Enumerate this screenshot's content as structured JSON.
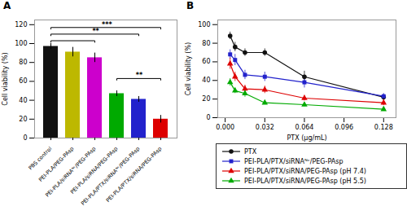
{
  "chart_data": [
    {
      "type": "bar",
      "title": "A",
      "categories": [
        "PBS control",
        "PEI-PLA/PEG-PAsp",
        "PEI-PLA/siRNAᴺᶜ/PEG-PAsp",
        "PEI-PLA/siRNA/PEG-PAsp",
        "PEI-PLA/PTX/siRNAᴺᶜ/PEG-PAsp",
        "PEI-PLA/PTX/siRNA/PEG-PAsp"
      ],
      "values": [
        97,
        91,
        85,
        47,
        41,
        20
      ],
      "errors": [
        3,
        5,
        5,
        3,
        3,
        4
      ],
      "colors": [
        "#111111",
        "#bdb800",
        "#cc00cc",
        "#00aa00",
        "#2222cc",
        "#dd0000"
      ],
      "ylabel": "Cell viability (%)",
      "ylim": [
        0,
        125
      ],
      "yticks": [
        0,
        20,
        40,
        60,
        80,
        100,
        120
      ],
      "annotations": [
        {
          "from": "PBS control",
          "to": "PEI-PLA/siRNAᴺᶜ/PEG-PAsp",
          "y": 103
        },
        {
          "from": "PBS control",
          "to": "PEI-PLA/PTX/siRNAᴺᶜ/PEG-PAsp",
          "y": 110,
          "text": "**"
        },
        {
          "from": "PBS control",
          "to": "PEI-PLA/PTX/siRNA/PEG-PAsp",
          "y": 117,
          "text": "***"
        },
        {
          "from": "PEI-PLA/siRNA/PEG-PAsp",
          "to": "PEI-PLA/PTX/siRNA/PEG-PAsp",
          "y": 63,
          "text": "**"
        }
      ]
    },
    {
      "type": "line",
      "title": "B",
      "x": [
        0.004,
        0.008,
        0.016,
        0.032,
        0.064,
        0.128
      ],
      "series": [
        {
          "name": "PTX",
          "color": "#111111",
          "marker": "circle",
          "values": [
            88,
            76,
            70,
            70,
            44,
            22
          ],
          "errors": [
            4,
            5,
            4,
            4,
            6,
            3
          ]
        },
        {
          "name": "PEI-PLA/PTX/siRNAᴺᶜ/PEG-PAsp",
          "color": "#2222cc",
          "marker": "square",
          "values": [
            68,
            62,
            46,
            44,
            38,
            23
          ],
          "errors": [
            5,
            6,
            5,
            5,
            6,
            3
          ]
        },
        {
          "name": "PEI-PLA/PTX/siRNA/PEG-PAsp (pH 7.4)",
          "color": "#dd0000",
          "marker": "triangle",
          "values": [
            58,
            44,
            31,
            30,
            21,
            16
          ],
          "errors": [
            6,
            5,
            4,
            4,
            3,
            3
          ]
        },
        {
          "name": "PEI-PLA/PTX/siRNA/PEG-PAsp (pH 5.5)",
          "color": "#00aa00",
          "marker": "triangle",
          "values": [
            38,
            29,
            26,
            16,
            14,
            9
          ],
          "errors": [
            4,
            3,
            4,
            2,
            2,
            2
          ]
        }
      ],
      "xlabel": "PTX (µg/mL)",
      "ylabel": "Cell viability (%)",
      "xlim": [
        -0.006,
        0.138
      ],
      "xticks": [
        {
          "value": 0,
          "label": "0.000"
        },
        0.032,
        0.064,
        0.096,
        0.128
      ],
      "ylim": [
        0,
        105
      ],
      "yticks": [
        0,
        20,
        40,
        60,
        80,
        100
      ],
      "legend": "bottom"
    }
  ]
}
